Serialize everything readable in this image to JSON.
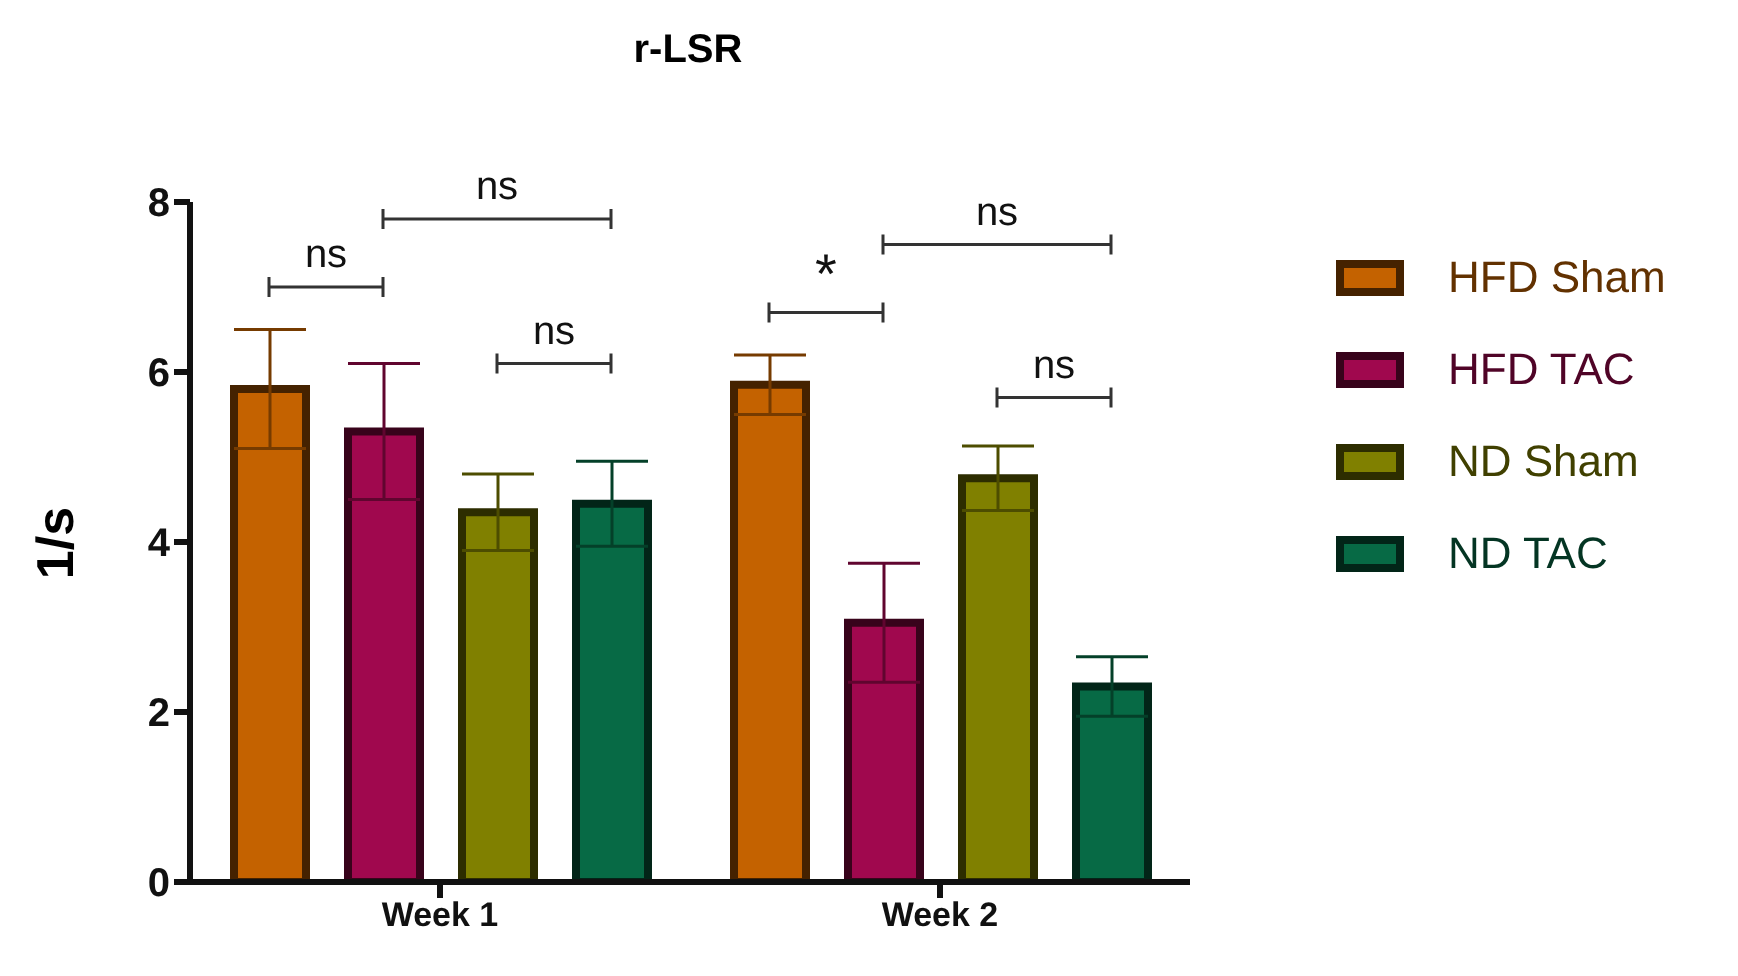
{
  "chart_data": {
    "type": "bar",
    "title": "r-LSR",
    "ylabel": "1/s",
    "categories": [
      "Week 1",
      "Week 2"
    ],
    "series": [
      {
        "name": "HFD Sham",
        "color": "#c46200",
        "values": [
          5.8,
          5.85
        ],
        "errors": [
          0.7,
          0.35
        ]
      },
      {
        "name": "HFD TAC",
        "color": "#a0084e",
        "values": [
          5.3,
          3.05
        ],
        "errors": [
          0.8,
          0.7
        ]
      },
      {
        "name": "ND Sham",
        "color": "#808000",
        "values": [
          4.35,
          4.75
        ],
        "errors": [
          0.45,
          0.38
        ]
      },
      {
        "name": "ND TAC",
        "color": "#076a45",
        "values": [
          4.45,
          2.3
        ],
        "errors": [
          0.5,
          0.35
        ]
      }
    ],
    "ylim": [
      0,
      8
    ],
    "yticks": [
      0,
      2,
      4,
      6,
      8
    ],
    "legend": "right",
    "annotations": [
      "ns",
      "ns",
      "ns",
      "*",
      "ns",
      "ns"
    ]
  }
}
